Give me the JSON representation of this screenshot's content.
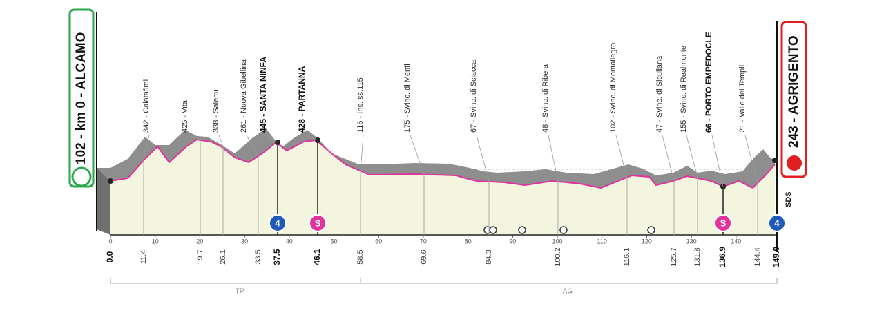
{
  "start": {
    "label": "102 - km 0 - ALCAMO",
    "km": "0.0"
  },
  "finish": {
    "label": "243 - AGRIGENTO",
    "km": "149.0"
  },
  "waypoints": [
    {
      "label": "342 - Calatafimi",
      "km": "11.4"
    },
    {
      "label": "425 - Vita",
      "km": "19.7"
    },
    {
      "label": "338 - Salemi",
      "km": "26.1"
    },
    {
      "label": "261 - Nuova Gibellina",
      "km": "33.5"
    },
    {
      "label": "445 - SANTA NINFA",
      "km": "37.5"
    },
    {
      "label": "428 - PARTANNA",
      "km": "46.1"
    },
    {
      "label": "116 - Ins. ss.115",
      "km": "58.5"
    },
    {
      "label": "175 - Svinc. di Menfi",
      "km": "69.6"
    },
    {
      "label": "67 - Svinc. di Sciacca",
      "km": "84.3"
    },
    {
      "label": "48 - Svinc. di Ribera",
      "km": "100.2"
    },
    {
      "label": "102 - Svinc. di Montallegro",
      "km": "116.1"
    },
    {
      "label": "47 - Svinc. di Siculiana",
      "km": "125.7"
    },
    {
      "label": "155 - Svinc. di Realmonte",
      "km": "131.8"
    },
    {
      "label": "66 - PORTO EMPEDOCLE",
      "km": "136.9"
    },
    {
      "label": "21 - Valle dei Templi",
      "km": "144.4"
    }
  ],
  "km_axis": {
    "ticks": [
      0,
      10,
      20,
      30,
      40,
      50,
      60,
      70,
      80,
      90,
      100,
      110,
      120,
      130,
      140
    ]
  },
  "badges": [
    "4",
    "S",
    "S",
    "4"
  ],
  "provinces": [
    "TP",
    "AG"
  ],
  "sds": "SDS"
}
